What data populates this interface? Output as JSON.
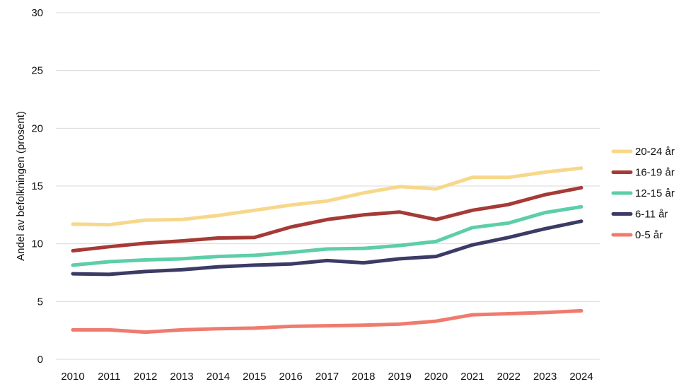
{
  "chart_data": {
    "type": "line",
    "title": "",
    "xlabel": "",
    "ylabel": "Andel av befolkningen (prosent)",
    "ylim": [
      0,
      30
    ],
    "yticks": [
      0,
      5,
      10,
      15,
      20,
      25,
      30
    ],
    "grid": true,
    "legend_position": "right",
    "x": [
      "2010",
      "2011",
      "2012",
      "2013",
      "2014",
      "2015",
      "2016",
      "2017",
      "2018",
      "2019",
      "2020",
      "2021",
      "2022",
      "2023",
      "2024"
    ],
    "series": [
      {
        "name": "20-24 år",
        "color": "#f7d88a",
        "values": [
          11.7,
          11.65,
          12.05,
          12.1,
          12.45,
          12.9,
          13.35,
          13.7,
          14.4,
          14.95,
          14.75,
          15.75,
          15.75,
          16.2,
          16.55
        ]
      },
      {
        "name": "16-19 år",
        "color": "#a63a36",
        "values": [
          9.4,
          9.75,
          10.05,
          10.25,
          10.5,
          10.55,
          11.45,
          12.1,
          12.5,
          12.75,
          12.1,
          12.9,
          13.4,
          14.25,
          14.85
        ]
      },
      {
        "name": "12-15 år",
        "color": "#5dcea8",
        "values": [
          8.15,
          8.45,
          8.6,
          8.7,
          8.9,
          9.0,
          9.25,
          9.55,
          9.6,
          9.85,
          10.2,
          11.4,
          11.8,
          12.7,
          13.2
        ]
      },
      {
        "name": "6-11 år",
        "color": "#3b3b66",
        "values": [
          7.4,
          7.35,
          7.6,
          7.75,
          8.0,
          8.15,
          8.25,
          8.55,
          8.35,
          8.7,
          8.9,
          9.9,
          10.55,
          11.3,
          11.95
        ]
      },
      {
        "name": "0-5 år",
        "color": "#ef7b6e",
        "values": [
          2.55,
          2.55,
          2.35,
          2.55,
          2.65,
          2.7,
          2.85,
          2.9,
          2.95,
          3.05,
          3.3,
          3.85,
          3.95,
          4.05,
          4.2
        ]
      }
    ]
  }
}
